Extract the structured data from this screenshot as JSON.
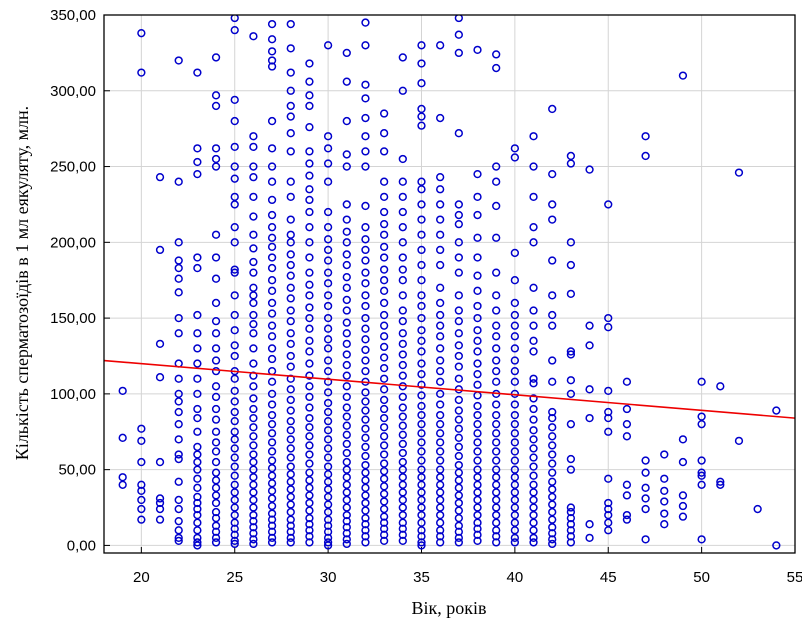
{
  "chart_data": {
    "type": "scatter",
    "title": "",
    "xlabel": "Вік, років",
    "ylabel": "Кількість сперматозоїдів в 1 мл еякуляту, млн.",
    "xlim": [
      18,
      55
    ],
    "ylim": [
      -5,
      350
    ],
    "x_ticks": [
      "20",
      "25",
      "30",
      "35",
      "40",
      "45",
      "50",
      "55"
    ],
    "y_ticks": [
      "0,00",
      "50,00",
      "100,00",
      "150,00",
      "200,00",
      "250,00",
      "300,00",
      "350,00"
    ],
    "grid": true,
    "marker_color": "#0000cc",
    "trend_color": "#ee0000",
    "trend_line": {
      "x": [
        18,
        55
      ],
      "y": [
        122,
        84
      ]
    },
    "points_by_age": [
      {
        "x": 19,
        "y": [
          102,
          71,
          45,
          40
        ]
      },
      {
        "x": 20,
        "y": [
          338,
          312,
          77,
          69,
          55,
          40,
          36,
          30,
          24,
          17
        ]
      },
      {
        "x": 21,
        "y": [
          243,
          195,
          133,
          111,
          55,
          31,
          28,
          24,
          17
        ]
      },
      {
        "x": 22,
        "y": [
          320,
          240,
          200,
          188,
          183,
          176,
          167,
          150,
          140,
          120,
          110,
          100,
          95,
          88,
          80,
          70,
          60,
          57,
          42,
          30,
          24,
          16,
          10,
          5,
          3
        ]
      },
      {
        "x": 23,
        "y": [
          312,
          262,
          253,
          245,
          190,
          183,
          152,
          140,
          130,
          120,
          110,
          100,
          90,
          84,
          75,
          65,
          60,
          55,
          50,
          44,
          38,
          32,
          28,
          24,
          20,
          15,
          10,
          5,
          2,
          0
        ]
      },
      {
        "x": 24,
        "y": [
          322,
          297,
          290,
          262,
          255,
          250,
          205,
          190,
          176,
          160,
          148,
          140,
          130,
          122,
          115,
          105,
          98,
          90,
          83,
          75,
          68,
          62,
          55,
          48,
          43,
          38,
          33,
          28,
          22,
          18,
          13,
          9,
          5,
          2
        ]
      },
      {
        "x": 25,
        "y": [
          348,
          340,
          294,
          280,
          263,
          250,
          242,
          230,
          225,
          210,
          200,
          182,
          180,
          165,
          152,
          142,
          132,
          125,
          115,
          110,
          102,
          95,
          88,
          82,
          75,
          70,
          64,
          58,
          52,
          46,
          40,
          35,
          30,
          25,
          20,
          15,
          11,
          7,
          3,
          1
        ]
      },
      {
        "x": 26,
        "y": [
          336,
          270,
          263,
          250,
          243,
          230,
          217,
          205,
          196,
          187,
          180,
          170,
          165,
          160,
          152,
          146,
          140,
          130,
          120,
          112,
          105,
          97,
          90,
          84,
          78,
          72,
          66,
          60,
          55,
          50,
          45,
          40,
          35,
          30,
          25,
          20,
          16,
          12,
          8,
          4,
          1
        ]
      },
      {
        "x": 27,
        "y": [
          344,
          334,
          326,
          320,
          316,
          280,
          262,
          250,
          240,
          228,
          218,
          210,
          203,
          197,
          190,
          183,
          175,
          168,
          160,
          153,
          145,
          138,
          130,
          123,
          115,
          108,
          100,
          93,
          86,
          80,
          74,
          68,
          62,
          56,
          51,
          46,
          41,
          36,
          31,
          26,
          21,
          17,
          13,
          9,
          5,
          2
        ]
      },
      {
        "x": 28,
        "y": [
          344,
          328,
          312,
          300,
          290,
          283,
          272,
          260,
          240,
          230,
          215,
          205,
          200,
          192,
          185,
          178,
          170,
          163,
          155,
          148,
          140,
          133,
          125,
          118,
          110,
          103,
          96,
          89,
          82,
          76,
          70,
          64,
          58,
          52,
          47,
          42,
          37,
          32,
          27,
          22,
          17,
          13,
          9,
          5,
          2
        ]
      },
      {
        "x": 29,
        "y": [
          318,
          306,
          297,
          290,
          276,
          260,
          252,
          244,
          235,
          228,
          220,
          210,
          200,
          190,
          180,
          172,
          165,
          157,
          150,
          143,
          135,
          128,
          120,
          112,
          105,
          98,
          91,
          84,
          78,
          72,
          66,
          60,
          54,
          48,
          43,
          38,
          33,
          28,
          23,
          18,
          14,
          10,
          6,
          2
        ]
      },
      {
        "x": 30,
        "y": [
          330,
          270,
          262,
          252,
          240,
          220,
          210,
          202,
          195,
          188,
          180,
          173,
          165,
          158,
          150,
          143,
          136,
          130,
          122,
          115,
          108,
          101,
          94,
          88,
          82,
          76,
          70,
          64,
          58,
          52,
          47,
          42,
          37,
          32,
          27,
          22,
          17,
          13,
          9,
          5,
          2,
          0
        ]
      },
      {
        "x": 31,
        "y": [
          325,
          306,
          280,
          258,
          250,
          225,
          215,
          207,
          200,
          192,
          185,
          177,
          170,
          162,
          155,
          147,
          140,
          133,
          126,
          119,
          112,
          105,
          98,
          91,
          85,
          79,
          73,
          67,
          61,
          55,
          50,
          45,
          40,
          35,
          30,
          25,
          20,
          16,
          12,
          8,
          4,
          1
        ]
      },
      {
        "x": 32,
        "y": [
          345,
          330,
          304,
          295,
          282,
          270,
          260,
          250,
          224,
          210,
          202,
          195,
          188,
          180,
          173,
          165,
          158,
          150,
          143,
          136,
          129,
          122,
          115,
          108,
          101,
          95,
          89,
          83,
          77,
          71,
          65,
          59,
          53,
          48,
          43,
          38,
          33,
          28,
          23,
          18,
          14,
          10,
          6,
          2
        ]
      },
      {
        "x": 33,
        "y": [
          285,
          272,
          260,
          240,
          230,
          220,
          212,
          205,
          197,
          190,
          182,
          175,
          168,
          160,
          152,
          145,
          138,
          131,
          124,
          117,
          110,
          103,
          96,
          90,
          84,
          78,
          72,
          66,
          60,
          54,
          49,
          44,
          39,
          34,
          29,
          24,
          19,
          15,
          11,
          7,
          3
        ]
      },
      {
        "x": 34,
        "y": [
          322,
          300,
          255,
          240,
          230,
          220,
          210,
          200,
          190,
          182,
          175,
          165,
          155,
          148,
          140,
          133,
          126,
          119,
          112,
          105,
          98,
          91,
          85,
          79,
          73,
          67,
          61,
          55,
          50,
          45,
          40,
          35,
          30,
          25,
          20,
          15,
          11,
          7,
          3
        ]
      },
      {
        "x": 35,
        "y": [
          330,
          318,
          305,
          288,
          283,
          277,
          240,
          235,
          225,
          215,
          205,
          195,
          185,
          175,
          165,
          158,
          150,
          142,
          135,
          128,
          120,
          113,
          106,
          99,
          92,
          86,
          80,
          74,
          68,
          62,
          56,
          50,
          45,
          40,
          35,
          30,
          25,
          20,
          15,
          10,
          6,
          2,
          0
        ]
      },
      {
        "x": 36,
        "y": [
          330,
          282,
          243,
          235,
          225,
          215,
          205,
          195,
          185,
          170,
          160,
          152,
          145,
          138,
          130,
          122,
          115,
          108,
          100,
          93,
          86,
          80,
          74,
          68,
          62,
          56,
          50,
          45,
          40,
          35,
          30,
          25,
          20,
          15,
          10,
          6,
          2
        ]
      },
      {
        "x": 37,
        "y": [
          348,
          337,
          325,
          272,
          225,
          218,
          212,
          200,
          190,
          180,
          165,
          155,
          148,
          140,
          132,
          125,
          118,
          110,
          103,
          96,
          89,
          83,
          77,
          71,
          65,
          59,
          53,
          48,
          43,
          38,
          33,
          28,
          23,
          18,
          13,
          9,
          5,
          2
        ]
      },
      {
        "x": 38,
        "y": [
          327,
          245,
          230,
          218,
          203,
          190,
          178,
          168,
          158,
          150,
          142,
          135,
          128,
          120,
          113,
          106,
          99,
          92,
          86,
          80,
          74,
          68,
          62,
          56,
          50,
          45,
          40,
          35,
          30,
          25,
          20,
          15,
          11,
          7,
          3
        ]
      },
      {
        "x": 39,
        "y": [
          324,
          315,
          250,
          240,
          224,
          203,
          180,
          165,
          155,
          145,
          138,
          130,
          122,
          115,
          108,
          100,
          93,
          86,
          80,
          74,
          68,
          62,
          56,
          50,
          45,
          40,
          35,
          30,
          25,
          20,
          15,
          10,
          6,
          2
        ]
      },
      {
        "x": 40,
        "y": [
          262,
          256,
          193,
          175,
          160,
          152,
          145,
          138,
          130,
          122,
          115,
          108,
          100,
          93,
          86,
          80,
          74,
          68,
          62,
          56,
          50,
          45,
          40,
          35,
          30,
          25,
          20,
          15,
          10,
          5,
          2
        ]
      },
      {
        "x": 41,
        "y": [
          270,
          250,
          230,
          210,
          200,
          170,
          155,
          145,
          135,
          128,
          110,
          107,
          97,
          90,
          83,
          76,
          70,
          64,
          58,
          52,
          46,
          40,
          35,
          30,
          25,
          20,
          15,
          10,
          5,
          2
        ]
      },
      {
        "x": 42,
        "y": [
          288,
          245,
          225,
          215,
          188,
          165,
          152,
          145,
          122,
          108,
          88,
          84,
          78,
          72,
          66,
          60,
          54,
          48,
          42,
          37,
          32,
          27,
          22,
          17,
          12,
          8,
          4,
          1
        ]
      },
      {
        "x": 43,
        "y": [
          257,
          252,
          200,
          185,
          166,
          128,
          126,
          109,
          100,
          80,
          57,
          50,
          25,
          22,
          18,
          14,
          10,
          6,
          2
        ]
      },
      {
        "x": 44,
        "y": [
          248,
          145,
          132,
          103,
          84,
          14,
          5
        ]
      },
      {
        "x": 45,
        "y": [
          225,
          150,
          144,
          102,
          88,
          84,
          75,
          44,
          28,
          24,
          20,
          15,
          10
        ]
      },
      {
        "x": 46,
        "y": [
          108,
          90,
          80,
          72,
          40,
          33,
          20,
          17
        ]
      },
      {
        "x": 47,
        "y": [
          270,
          257,
          56,
          48,
          38,
          31,
          24,
          4
        ]
      },
      {
        "x": 48,
        "y": [
          60,
          44,
          36,
          29,
          21,
          14
        ]
      },
      {
        "x": 49,
        "y": [
          310,
          70,
          55,
          33,
          26,
          19
        ]
      },
      {
        "x": 50,
        "y": [
          108,
          85,
          80,
          56,
          48,
          46,
          40,
          4
        ]
      },
      {
        "x": 51,
        "y": [
          105,
          42,
          40
        ]
      },
      {
        "x": 52,
        "y": [
          246,
          69
        ]
      },
      {
        "x": 53,
        "y": [
          24
        ]
      },
      {
        "x": 54,
        "y": [
          89,
          0
        ]
      }
    ]
  }
}
